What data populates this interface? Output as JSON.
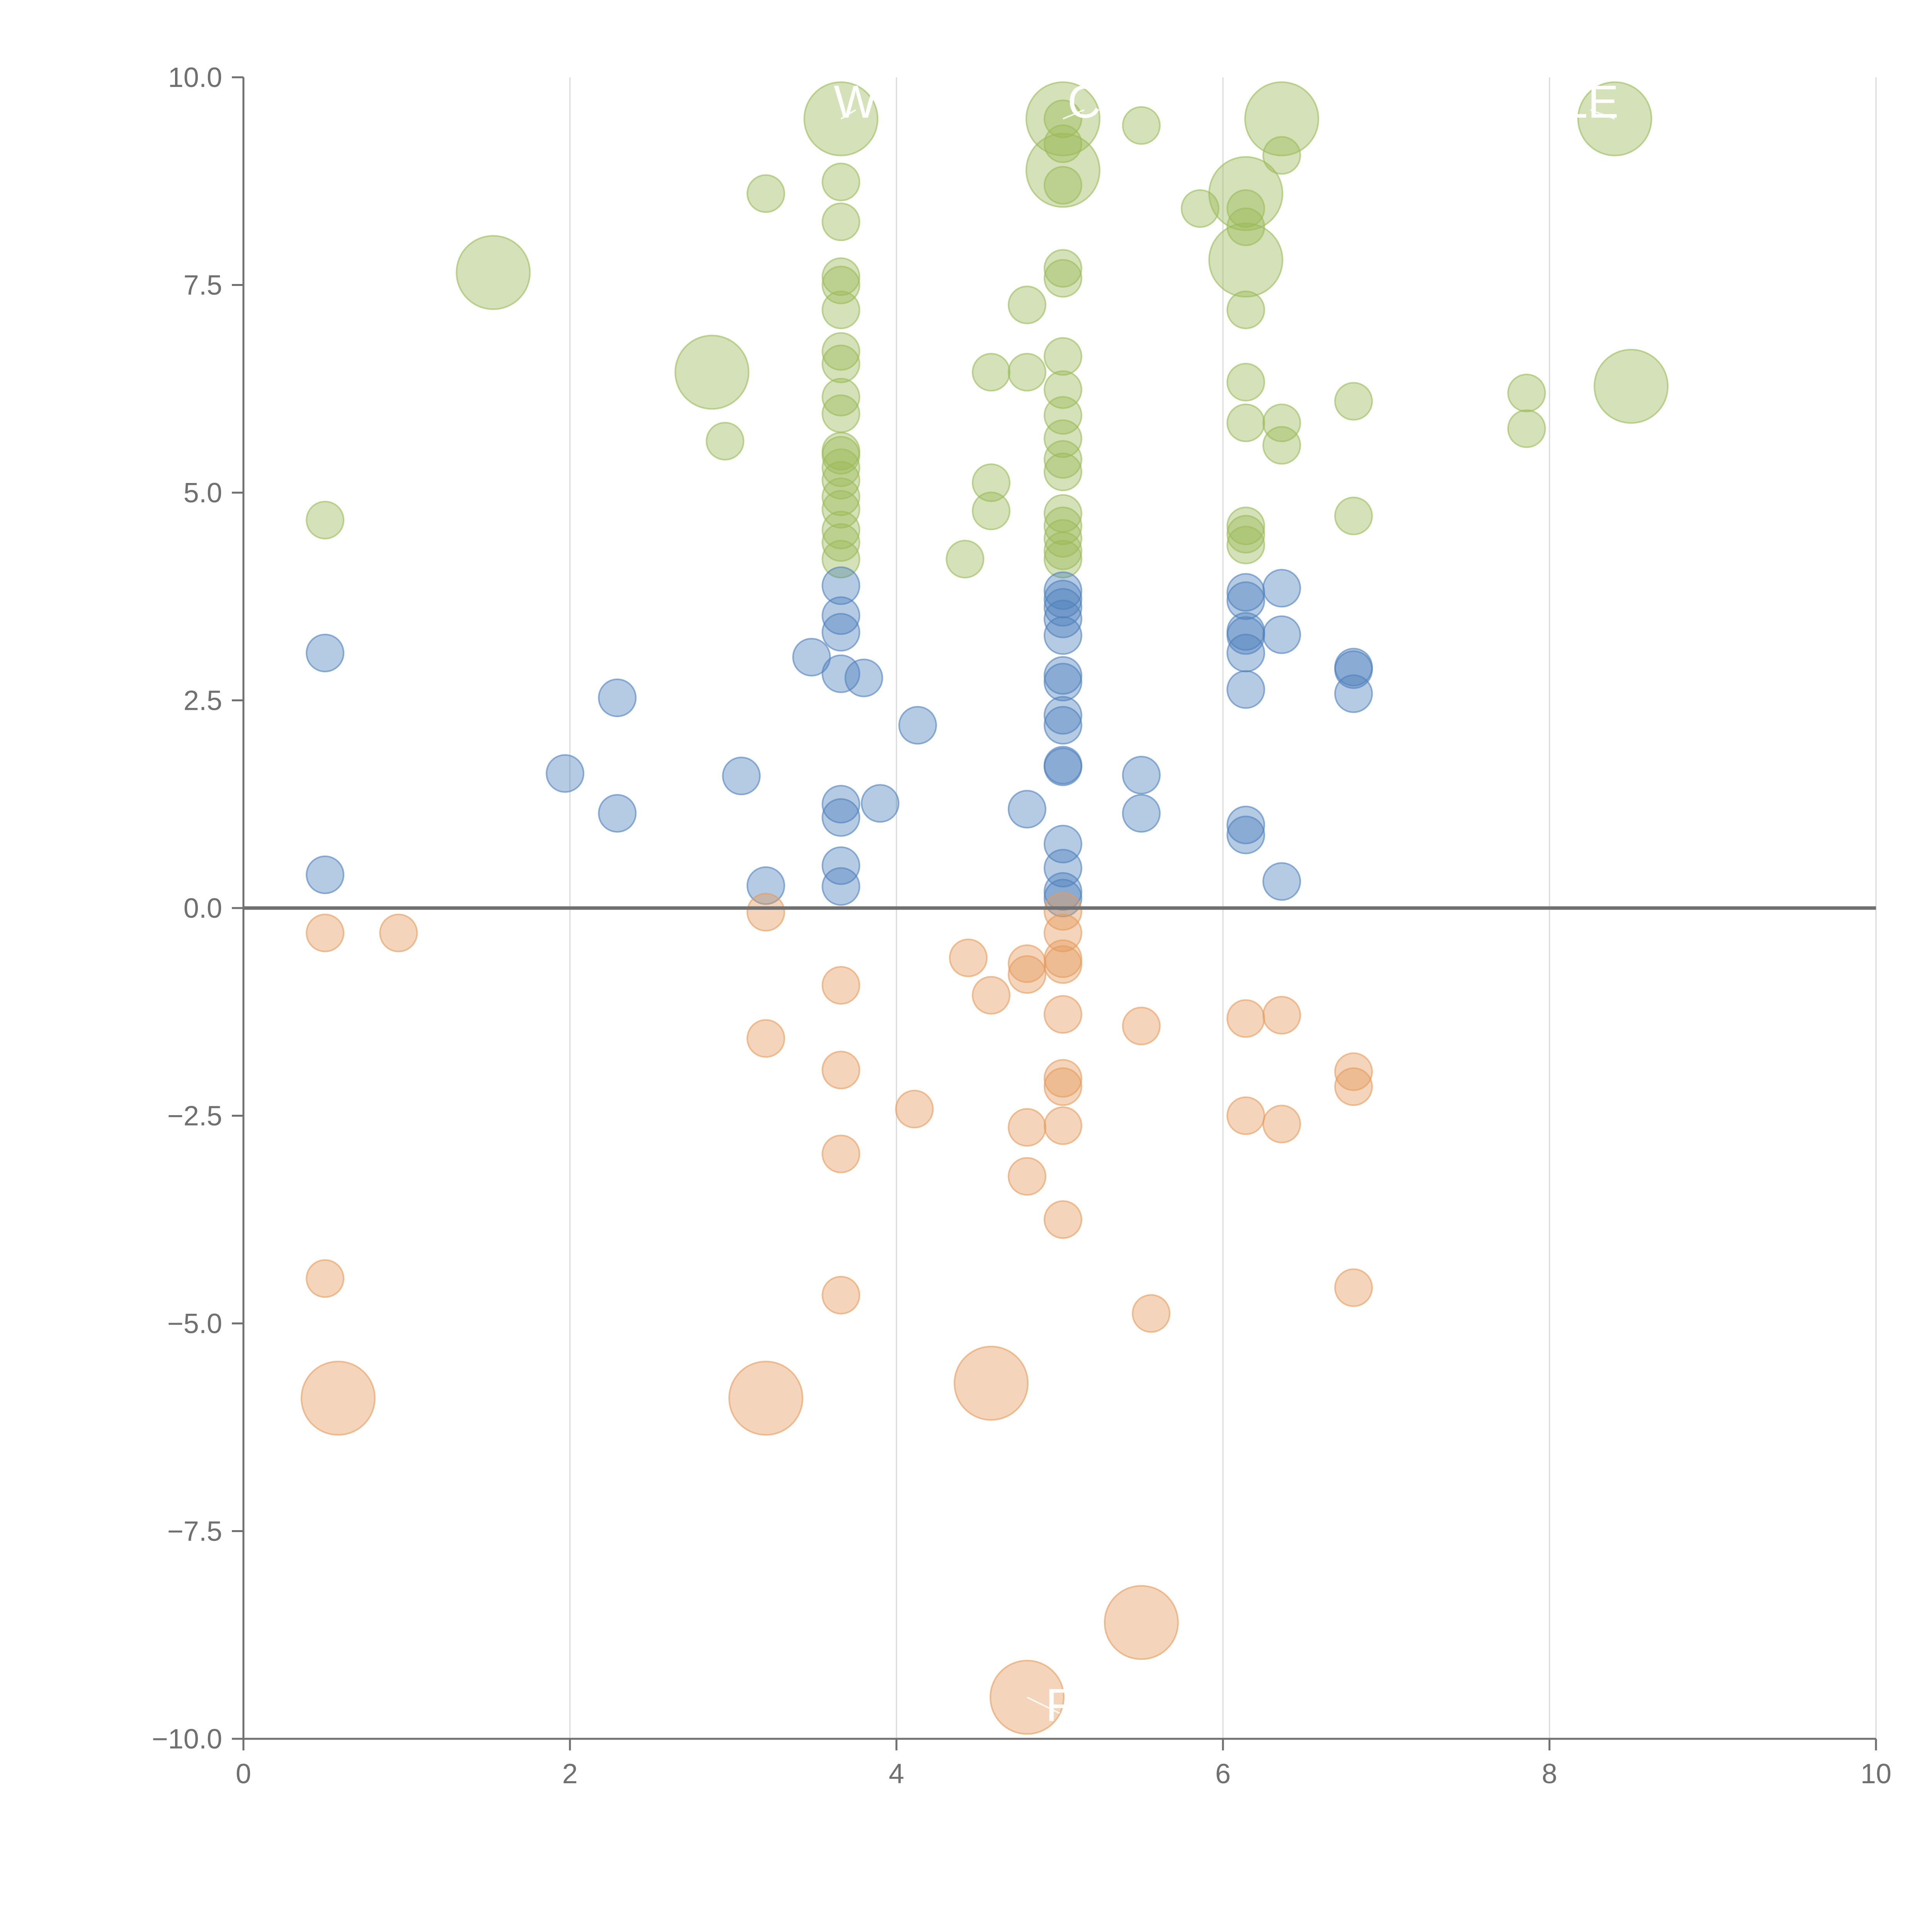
{
  "chart_data": {
    "type": "scatter",
    "title": "",
    "xlabel": "",
    "ylabel": "",
    "xlim": [
      0,
      10
    ],
    "ylim": [
      -10,
      10
    ],
    "grid": "vertical lines at x ticks",
    "x_ticks": [
      "0",
      "2",
      "4",
      "6",
      "8",
      "10"
    ],
    "y_ticks": [
      "−10.0",
      "−7.5",
      "−5.0",
      "−2.5",
      "0.0",
      "2.5",
      "5.0",
      "7.5",
      "10.0"
    ],
    "x_tick_values": [
      0,
      2,
      4,
      6,
      8,
      10
    ],
    "y_tick_values": [
      -10,
      -7.5,
      -5,
      -2.5,
      0,
      2.5,
      5,
      7.5,
      10
    ],
    "colors": {
      "green": "#9bbb59",
      "blue": "#4f81bd",
      "orange": "#e59b5c",
      "axis": "#707070",
      "zero_line": "#707070",
      "grid": "#d9d9d9"
    },
    "series": [
      {
        "name": "green",
        "color": "#9bbb59",
        "points": [
          [
            0.5,
            4.67
          ],
          [
            3.2,
            8.6
          ],
          [
            2.95,
            5.62
          ],
          [
            3.66,
            8.74
          ],
          [
            3.66,
            8.26
          ],
          [
            3.66,
            7.6
          ],
          [
            3.66,
            7.5
          ],
          [
            3.66,
            7.2
          ],
          [
            3.66,
            6.7
          ],
          [
            3.66,
            6.55
          ],
          [
            3.66,
            6.15
          ],
          [
            3.66,
            5.95
          ],
          [
            3.66,
            5.5
          ],
          [
            3.66,
            5.45
          ],
          [
            3.66,
            5.3
          ],
          [
            3.66,
            5.15
          ],
          [
            3.66,
            4.95
          ],
          [
            3.66,
            4.8
          ],
          [
            3.66,
            4.55
          ],
          [
            3.66,
            4.4
          ],
          [
            3.66,
            4.2
          ],
          [
            4.42,
            4.2
          ],
          [
            4.58,
            6.45
          ],
          [
            4.58,
            5.12
          ],
          [
            4.58,
            4.78
          ],
          [
            4.8,
            7.26
          ],
          [
            4.8,
            6.45
          ],
          [
            5.02,
            9.5
          ],
          [
            5.02,
            9.2
          ],
          [
            5.02,
            8.7
          ],
          [
            5.02,
            7.7
          ],
          [
            5.02,
            7.58
          ],
          [
            5.02,
            6.64
          ],
          [
            5.02,
            6.24
          ],
          [
            5.02,
            5.93
          ],
          [
            5.02,
            5.65
          ],
          [
            5.02,
            5.4
          ],
          [
            5.02,
            5.25
          ],
          [
            5.02,
            4.75
          ],
          [
            5.02,
            4.6
          ],
          [
            5.02,
            4.45
          ],
          [
            5.02,
            4.3
          ],
          [
            5.02,
            4.2
          ],
          [
            5.5,
            9.42
          ],
          [
            5.86,
            8.42
          ],
          [
            6.14,
            8.42
          ],
          [
            6.14,
            8.2
          ],
          [
            6.14,
            7.2
          ],
          [
            6.14,
            6.33
          ],
          [
            6.14,
            5.84
          ],
          [
            6.14,
            4.6
          ],
          [
            6.14,
            4.5
          ],
          [
            6.14,
            4.37
          ],
          [
            6.36,
            9.06
          ],
          [
            6.36,
            5.84
          ],
          [
            6.36,
            5.57
          ],
          [
            6.8,
            6.1
          ],
          [
            6.8,
            4.72
          ],
          [
            7.86,
            6.2
          ],
          [
            7.86,
            5.77
          ]
        ]
      },
      {
        "name": "blue",
        "color": "#4f81bd",
        "points": [
          [
            0.5,
            3.07
          ],
          [
            0.5,
            0.4
          ],
          [
            1.97,
            1.62
          ],
          [
            2.29,
            2.53
          ],
          [
            2.29,
            1.14
          ],
          [
            3.05,
            1.59
          ],
          [
            3.2,
            0.27
          ],
          [
            3.48,
            3.02
          ],
          [
            3.66,
            3.88
          ],
          [
            3.66,
            3.52
          ],
          [
            3.66,
            3.32
          ],
          [
            3.66,
            2.82
          ],
          [
            3.66,
            1.25
          ],
          [
            3.66,
            1.09
          ],
          [
            3.66,
            0.51
          ],
          [
            3.66,
            0.26
          ],
          [
            3.8,
            2.77
          ],
          [
            3.9,
            1.26
          ],
          [
            4.13,
            2.2
          ],
          [
            4.8,
            1.19
          ],
          [
            5.02,
            3.82
          ],
          [
            5.02,
            3.72
          ],
          [
            5.02,
            3.62
          ],
          [
            5.02,
            3.48
          ],
          [
            5.02,
            3.28
          ],
          [
            5.02,
            2.8
          ],
          [
            5.02,
            2.72
          ],
          [
            5.02,
            2.32
          ],
          [
            5.02,
            2.2
          ],
          [
            5.02,
            1.72
          ],
          [
            5.02,
            1.7
          ],
          [
            5.02,
            0.77
          ],
          [
            5.02,
            0.48
          ],
          [
            5.02,
            0.2
          ],
          [
            5.02,
            0.12
          ],
          [
            5.5,
            1.6
          ],
          [
            5.5,
            1.14
          ],
          [
            6.14,
            3.8
          ],
          [
            6.14,
            3.7
          ],
          [
            6.14,
            3.33
          ],
          [
            6.14,
            3.28
          ],
          [
            6.14,
            3.07
          ],
          [
            6.14,
            2.63
          ],
          [
            6.14,
            1.0
          ],
          [
            6.14,
            0.88
          ],
          [
            6.36,
            3.85
          ],
          [
            6.36,
            3.29
          ],
          [
            6.36,
            0.32
          ],
          [
            6.8,
            2.9
          ],
          [
            6.8,
            2.87
          ],
          [
            6.8,
            2.58
          ]
        ]
      },
      {
        "name": "orange",
        "color": "#e59b5c",
        "points": [
          [
            0.5,
            -0.3
          ],
          [
            0.95,
            -0.3
          ],
          [
            0.5,
            -4.46
          ],
          [
            3.2,
            -0.05
          ],
          [
            3.2,
            -1.57
          ],
          [
            3.66,
            -0.93
          ],
          [
            3.66,
            -1.95
          ],
          [
            3.66,
            -2.96
          ],
          [
            3.66,
            -4.66
          ],
          [
            4.11,
            -2.42
          ],
          [
            4.44,
            -0.6
          ],
          [
            4.58,
            -1.05
          ],
          [
            4.8,
            -0.67
          ],
          [
            4.8,
            -0.8
          ],
          [
            4.8,
            -2.64
          ],
          [
            4.8,
            -3.23
          ],
          [
            5.02,
            -0.04
          ],
          [
            5.02,
            -0.3
          ],
          [
            5.02,
            -0.61
          ],
          [
            5.02,
            -0.68
          ],
          [
            5.02,
            -1.28
          ],
          [
            5.02,
            -2.05
          ],
          [
            5.02,
            -2.15
          ],
          [
            5.02,
            -2.62
          ],
          [
            5.02,
            -3.75
          ],
          [
            5.5,
            -1.42
          ],
          [
            5.56,
            -4.88
          ],
          [
            6.14,
            -1.33
          ],
          [
            6.14,
            -2.5
          ],
          [
            6.36,
            -1.29
          ],
          [
            6.36,
            -2.6
          ],
          [
            6.8,
            -1.97
          ],
          [
            6.8,
            -2.15
          ],
          [
            6.8,
            -4.57
          ]
        ]
      }
    ],
    "large_points": [
      {
        "series": "green",
        "x": 3.66,
        "y": 9.5
      },
      {
        "series": "green",
        "x": 5.02,
        "y": 9.5
      },
      {
        "series": "green",
        "x": 5.02,
        "y": 8.88
      },
      {
        "series": "green",
        "x": 6.36,
        "y": 9.5
      },
      {
        "series": "green",
        "x": 8.4,
        "y": 9.5
      },
      {
        "series": "green",
        "x": 6.14,
        "y": 8.6
      },
      {
        "series": "green",
        "x": 6.14,
        "y": 7.8
      },
      {
        "series": "green",
        "x": 1.53,
        "y": 7.65
      },
      {
        "series": "green",
        "x": 2.87,
        "y": 6.45
      },
      {
        "series": "green",
        "x": 8.5,
        "y": 6.28
      },
      {
        "series": "orange",
        "x": 0.58,
        "y": -5.9
      },
      {
        "series": "orange",
        "x": 3.2,
        "y": -5.9
      },
      {
        "series": "orange",
        "x": 4.58,
        "y": -5.72
      },
      {
        "series": "orange",
        "x": 5.5,
        "y": -8.6
      },
      {
        "series": "orange",
        "x": 4.8,
        "y": -9.5
      }
    ],
    "labels": [
      {
        "text": "W",
        "x": 3.75,
        "y": 9.7,
        "line_to": [
          3.66,
          9.5
        ]
      },
      {
        "text": "C",
        "x": 5.15,
        "y": 9.7,
        "line_to": [
          5.02,
          9.5
        ]
      },
      {
        "text": "LE",
        "x": 8.25,
        "y": 9.7,
        "line_to": [
          8.4,
          9.5
        ]
      },
      {
        "text": "F",
        "x": 5.0,
        "y": -9.6,
        "line_to": [
          4.8,
          -9.5
        ]
      }
    ]
  }
}
